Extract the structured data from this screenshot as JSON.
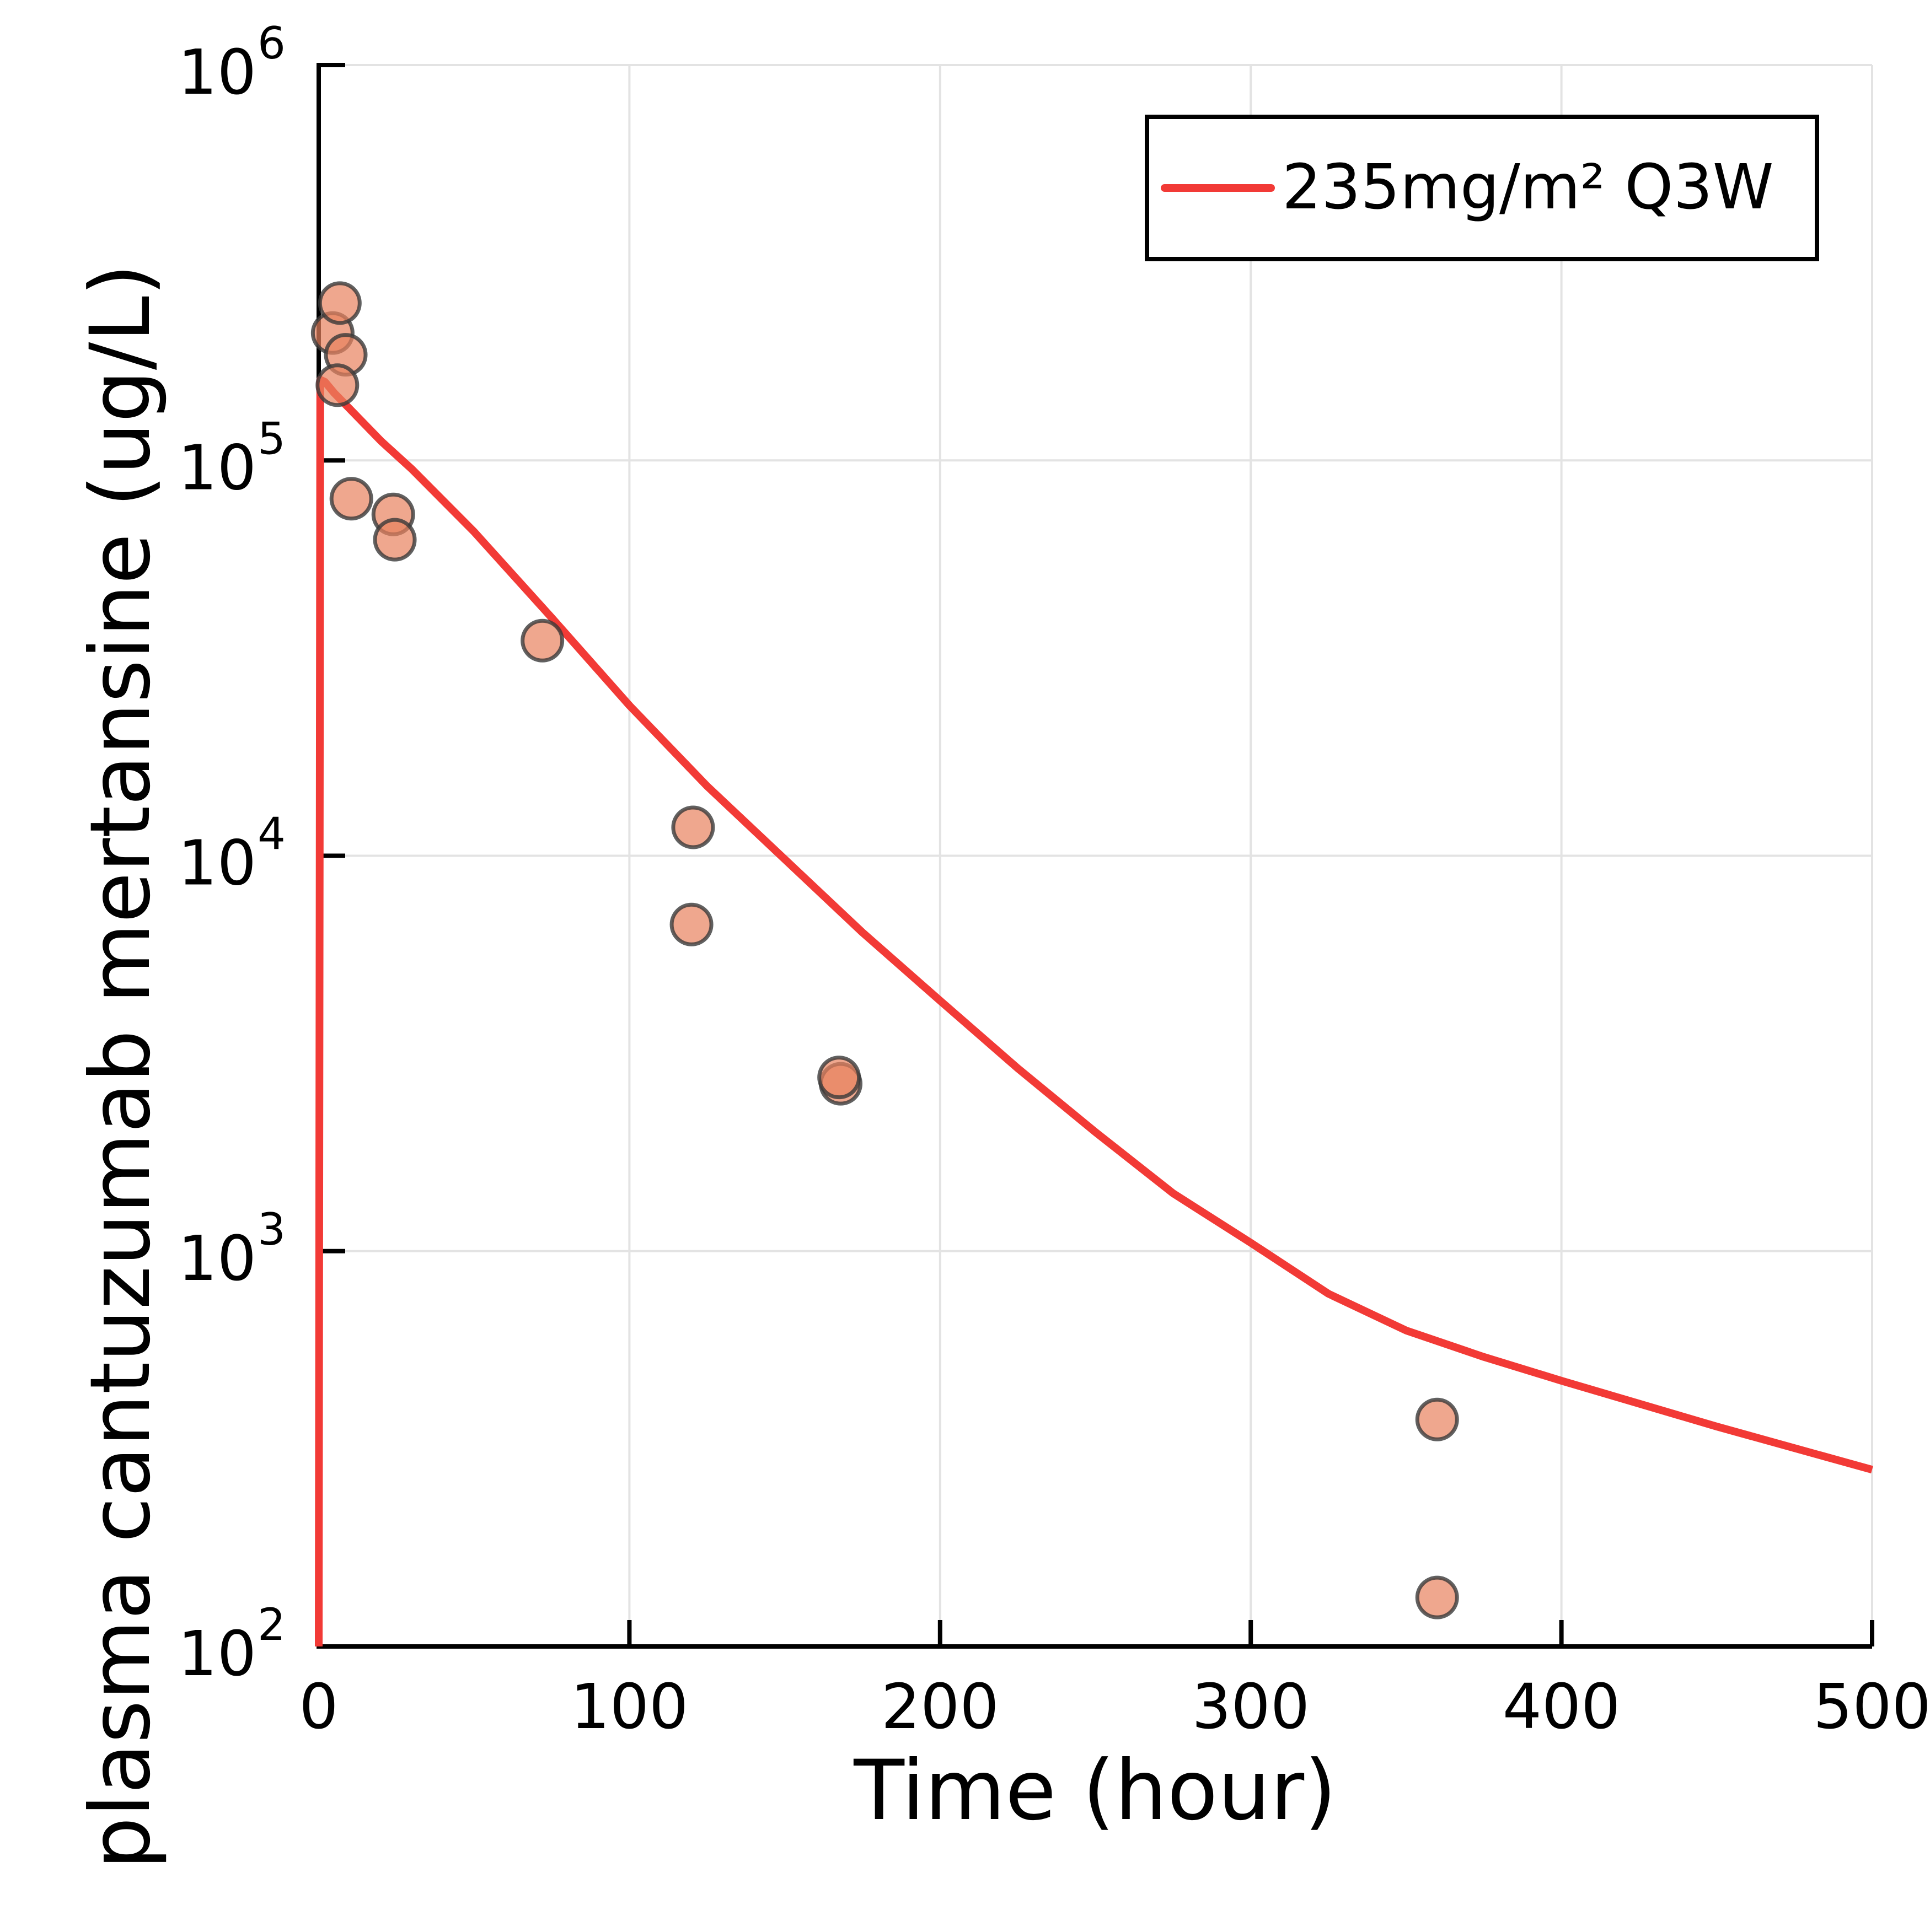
{
  "chart_data": {
    "type": "scatter",
    "xlabel": "Time (hour)",
    "ylabel": "plasma cantuzumab mertansine (ug/L)",
    "xlim": [
      0,
      500
    ],
    "ylim": [
      100,
      1000000
    ],
    "yscale": "log",
    "grid": true,
    "legend_placement": "top-right",
    "x_ticks": [
      0,
      100,
      200,
      300,
      400,
      500
    ],
    "x_tick_labels": [
      "0",
      "100",
      "200",
      "300",
      "400",
      "500"
    ],
    "y_ticks": [
      100,
      1000,
      10000,
      100000,
      1000000
    ],
    "y_tick_labels": [
      {
        "base": "10",
        "exp": "2"
      },
      {
        "base": "10",
        "exp": "3"
      },
      {
        "base": "10",
        "exp": "4"
      },
      {
        "base": "10",
        "exp": "5"
      },
      {
        "base": "10",
        "exp": "6"
      }
    ],
    "colors": {
      "line": "#f23a36",
      "marker_fill": "#e8825e",
      "marker_stroke": "#3a3a3a",
      "grid": "#e3e3e3",
      "axis": "#000000"
    },
    "series": [
      {
        "name": "235mg/m² Q3W",
        "kind": "line",
        "x": [
          0,
          0.5,
          2,
          5,
          10,
          20,
          30,
          50,
          75,
          100,
          125,
          150,
          175,
          200,
          225,
          250,
          275,
          300,
          325,
          350,
          375,
          400,
          450,
          500
        ],
        "y": [
          100,
          160000,
          158000,
          148000,
          135000,
          112000,
          95000,
          66000,
          40000,
          24000,
          15000,
          9800,
          6400,
          4300,
          2900,
          2000,
          1400,
          1050,
          780,
          630,
          540,
          470,
          360,
          280
        ]
      },
      {
        "kind": "scatter",
        "x": [
          4.5,
          6.8,
          8.7,
          6.0,
          10.5,
          24.0,
          24.5,
          72.0,
          120.5,
          120.0,
          168.0,
          167.5,
          360.0,
          360.0
        ],
        "y": [
          210000,
          250000,
          185000,
          155000,
          80000,
          73000,
          63000,
          35000,
          11800,
          6700,
          2650,
          2750,
          375,
          133
        ]
      }
    ]
  }
}
